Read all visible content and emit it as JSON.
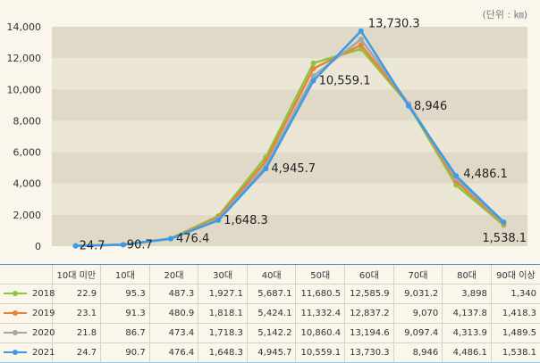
{
  "unit_label": "(단위 : ㎞)",
  "chart_data": {
    "type": "line",
    "categories": [
      "10대 미만",
      "10대",
      "20대",
      "30대",
      "40대",
      "50대",
      "60대",
      "70대",
      "80대",
      "90대 이상"
    ],
    "ylim": [
      0,
      14000
    ],
    "yticks": [
      0,
      2000,
      4000,
      6000,
      8000,
      10000,
      12000,
      14000
    ],
    "ytick_labels": [
      "0",
      "2,000",
      "4,000",
      "6,000",
      "8,000",
      "10,000",
      "12,000",
      "14,000"
    ],
    "series": [
      {
        "name": "2018",
        "color": "#8cc63f",
        "values": [
          22.9,
          95.3,
          487.3,
          1927.1,
          5687.1,
          11680.5,
          12585.9,
          9031.2,
          3898,
          1340
        ],
        "labels": [
          "22.9",
          "95.3",
          "487.3",
          "1,927.1",
          "5,687.1",
          "11,680.5",
          "12,585.9",
          "9,031.2",
          "3,898",
          "1,340"
        ]
      },
      {
        "name": "2019",
        "color": "#e8833a",
        "values": [
          23.1,
          91.3,
          480.9,
          1818.1,
          5424.1,
          11332.4,
          12837.2,
          9070,
          4137.8,
          1418.3
        ],
        "labels": [
          "23.1",
          "91.3",
          "480.9",
          "1,818.1",
          "5,424.1",
          "11,332.4",
          "12,837.2",
          "9,070",
          "4,137.8",
          "1,418.3"
        ]
      },
      {
        "name": "2020",
        "color": "#a6a6a6",
        "values": [
          21.8,
          86.7,
          473.4,
          1718.3,
          5142.2,
          10860.4,
          13194.6,
          9097.4,
          4313.9,
          1489.5
        ],
        "labels": [
          "21.8",
          "86.7",
          "473.4",
          "1,718.3",
          "5,142.2",
          "10,860.4",
          "13,194.6",
          "9,097.4",
          "4,313.9",
          "1,489.5"
        ]
      },
      {
        "name": "2021",
        "color": "#3a9be8",
        "values": [
          24.7,
          90.7,
          476.4,
          1648.3,
          4945.7,
          10559.1,
          13730.3,
          8946,
          4486.1,
          1538.1
        ],
        "labels": [
          "24.7",
          "90.7",
          "476.4",
          "1,648.3",
          "4,945.7",
          "10,559.1",
          "13,730.3",
          "8,946",
          "4,486.1",
          "1,538.1"
        ]
      }
    ],
    "data_labels": [
      "24.7",
      "90.7",
      "476.4",
      "1,648.3",
      "4,945.7",
      "10,559.1",
      "13,730.3",
      "8,946",
      "4,486.1",
      "1,538.1"
    ],
    "grid": "horizontal bands"
  }
}
